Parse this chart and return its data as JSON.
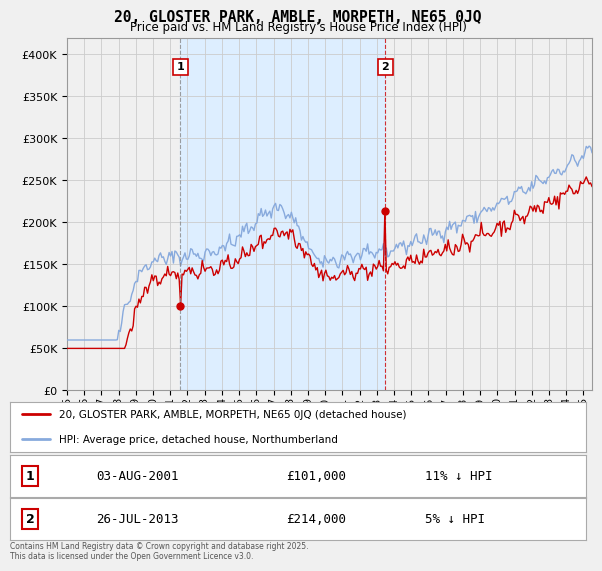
{
  "title": "20, GLOSTER PARK, AMBLE, MORPETH, NE65 0JQ",
  "subtitle": "Price paid vs. HM Land Registry's House Price Index (HPI)",
  "ylim": [
    0,
    420000
  ],
  "yticks": [
    0,
    50000,
    100000,
    150000,
    200000,
    250000,
    300000,
    350000,
    400000
  ],
  "sale1_date": "03-AUG-2001",
  "sale1_price": 101000,
  "sale1_label": "11% ↓ HPI",
  "sale2_date": "26-JUL-2013",
  "sale2_price": 214000,
  "sale2_label": "5% ↓ HPI",
  "legend1": "20, GLOSTER PARK, AMBLE, MORPETH, NE65 0JQ (detached house)",
  "legend2": "HPI: Average price, detached house, Northumberland",
  "footer": "Contains HM Land Registry data © Crown copyright and database right 2025.\nThis data is licensed under the Open Government Licence v3.0.",
  "price_color": "#cc0000",
  "hpi_color": "#88aadd",
  "vline1_color": "#888888",
  "vline2_color": "#cc0000",
  "shade_color": "#ddeeff",
  "background_color": "#f0f0f0",
  "plot_bg": "#f0f0f0",
  "grid_color": "#cccccc"
}
